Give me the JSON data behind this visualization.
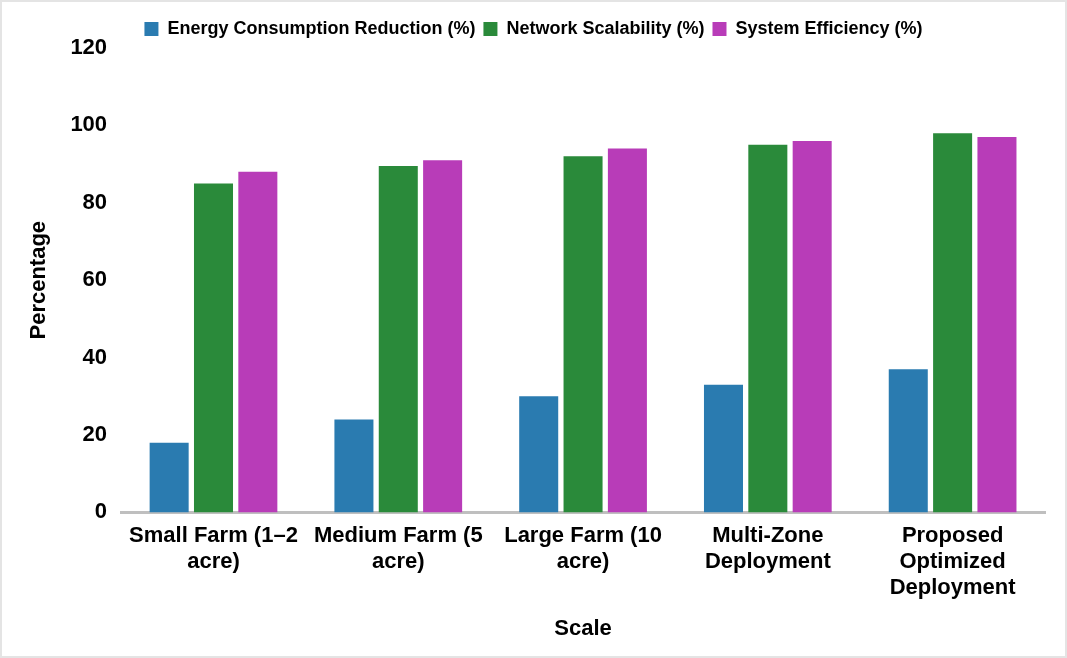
{
  "chart_data": {
    "type": "bar",
    "xlabel": "Scale",
    "ylabel": "Percentage",
    "categories": [
      "Small Farm (1–2 acre)",
      "Medium Farm (5 acre)",
      "Large Farm (10 acre)",
      "Multi-Zone Deployment",
      "Proposed Optimized Deployment"
    ],
    "series": [
      {
        "name": "Energy Consumption Reduction (%)",
        "color": "#2a7bb0",
        "values": [
          18,
          24,
          30,
          33,
          37
        ]
      },
      {
        "name": "Network Scalability (%)",
        "color": "#2a8a3a",
        "values": [
          85,
          89.5,
          92,
          95,
          98
        ]
      },
      {
        "name": "System Efficiency (%)",
        "color": "#b83cb8",
        "values": [
          88,
          91,
          94,
          96,
          97
        ]
      }
    ],
    "ylim": [
      0,
      120
    ],
    "yticks": [
      0,
      20,
      40,
      60,
      80,
      100,
      120
    ],
    "grid": false,
    "legend": "top"
  }
}
